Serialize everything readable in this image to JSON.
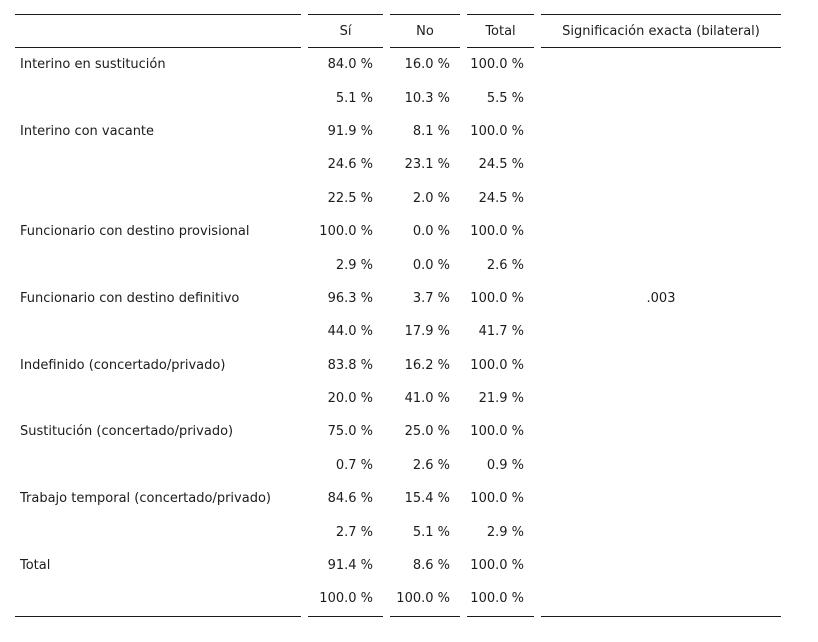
{
  "colors": {
    "text": "#1c1c1c",
    "rule": "#1a1a1a",
    "background": "#ffffff"
  },
  "table": {
    "columns": [
      "",
      "Sí",
      "No",
      "Total",
      "Significación exacta (bilateral)"
    ],
    "rows": [
      {
        "label": "Interino en sustitución",
        "si": "84.0 %",
        "no": "16.0 %",
        "total": "100.0 %",
        "sig": ""
      },
      {
        "label": "",
        "si": "5.1 %",
        "no": "10.3 %",
        "total": "5.5 %",
        "sig": ""
      },
      {
        "label": "Interino con vacante",
        "si": "91.9 %",
        "no": "8.1 %",
        "total": "100.0 %",
        "sig": ""
      },
      {
        "label": "",
        "si": "24.6 %",
        "no": "23.1 %",
        "total": "24.5 %",
        "sig": ""
      },
      {
        "label": "",
        "si": "22.5 %",
        "no": "2.0 %",
        "total": "24.5 %",
        "sig": ""
      },
      {
        "label": "Funcionario con destino provisional",
        "si": "100.0 %",
        "no": "0.0 %",
        "total": "100.0 %",
        "sig": ""
      },
      {
        "label": "",
        "si": "2.9 %",
        "no": "0.0 %",
        "total": "2.6 %",
        "sig": ""
      },
      {
        "label": "Funcionario con destino definitivo",
        "si": "96.3 %",
        "no": "3.7 %",
        "total": "100.0 %",
        "sig": ".003"
      },
      {
        "label": "",
        "si": "44.0 %",
        "no": "17.9 %",
        "total": "41.7 %",
        "sig": ""
      },
      {
        "label": "Indefinido (concertado/privado)",
        "si": "83.8 %",
        "no": "16.2 %",
        "total": "100.0 %",
        "sig": ""
      },
      {
        "label": "",
        "si": "20.0 %",
        "no": "41.0 %",
        "total": "21.9 %",
        "sig": ""
      },
      {
        "label": "Sustitución (concertado/privado)",
        "si": "75.0 %",
        "no": "25.0 %",
        "total": "100.0 %",
        "sig": ""
      },
      {
        "label": "",
        "si": "0.7 %",
        "no": "2.6 %",
        "total": "0.9 %",
        "sig": ""
      },
      {
        "label": "Trabajo temporal (concertado/privado)",
        "si": "84.6 %",
        "no": "15.4 %",
        "total": "100.0 %",
        "sig": ""
      },
      {
        "label": "",
        "si": "2.7 %",
        "no": "5.1 %",
        "total": "2.9 %",
        "sig": ""
      },
      {
        "label": "Total",
        "si": "91.4 %",
        "no": "8.6 %",
        "total": "100.0 %",
        "sig": ""
      },
      {
        "label": "",
        "si": "100.0 %",
        "no": "100.0 %",
        "total": "100.0 %",
        "sig": ""
      }
    ]
  }
}
